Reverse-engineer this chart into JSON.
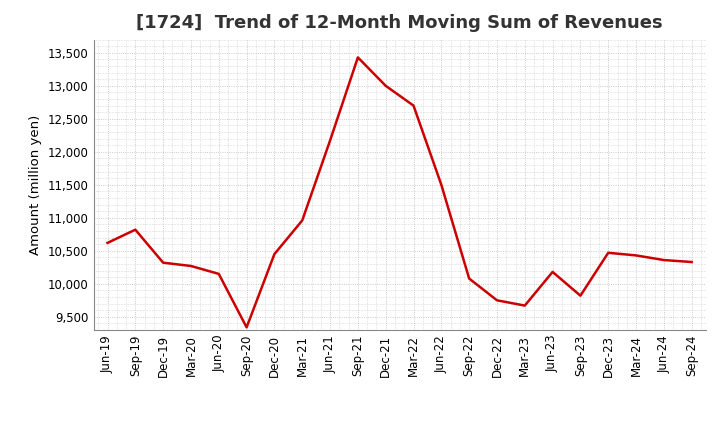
{
  "title": "[1724]  Trend of 12-Month Moving Sum of Revenues",
  "ylabel": "Amount (million yen)",
  "line_color": "#cc0000",
  "line_width": 1.8,
  "background_color": "#ffffff",
  "grid_color": "#bbbbbb",
  "labels": [
    "Jun-19",
    "Sep-19",
    "Dec-19",
    "Mar-20",
    "Jun-20",
    "Sep-20",
    "Dec-20",
    "Mar-21",
    "Jun-21",
    "Sep-21",
    "Dec-21",
    "Mar-22",
    "Jun-22",
    "Sep-22",
    "Dec-22",
    "Mar-23",
    "Jun-23",
    "Sep-23",
    "Dec-23",
    "Mar-24",
    "Jun-24",
    "Sep-24"
  ],
  "values": [
    10620,
    10820,
    10320,
    10270,
    10150,
    9340,
    10450,
    10960,
    12170,
    13430,
    13000,
    12700,
    11500,
    10080,
    9750,
    9670,
    10180,
    9820,
    10470,
    10430,
    10360,
    10330
  ],
  "ylim": [
    9300,
    13700
  ],
  "yticks": [
    9500,
    10000,
    10500,
    11000,
    11500,
    12000,
    12500,
    13000,
    13500
  ],
  "title_fontsize": 13,
  "axis_fontsize": 8.5,
  "ylabel_fontsize": 9.5
}
